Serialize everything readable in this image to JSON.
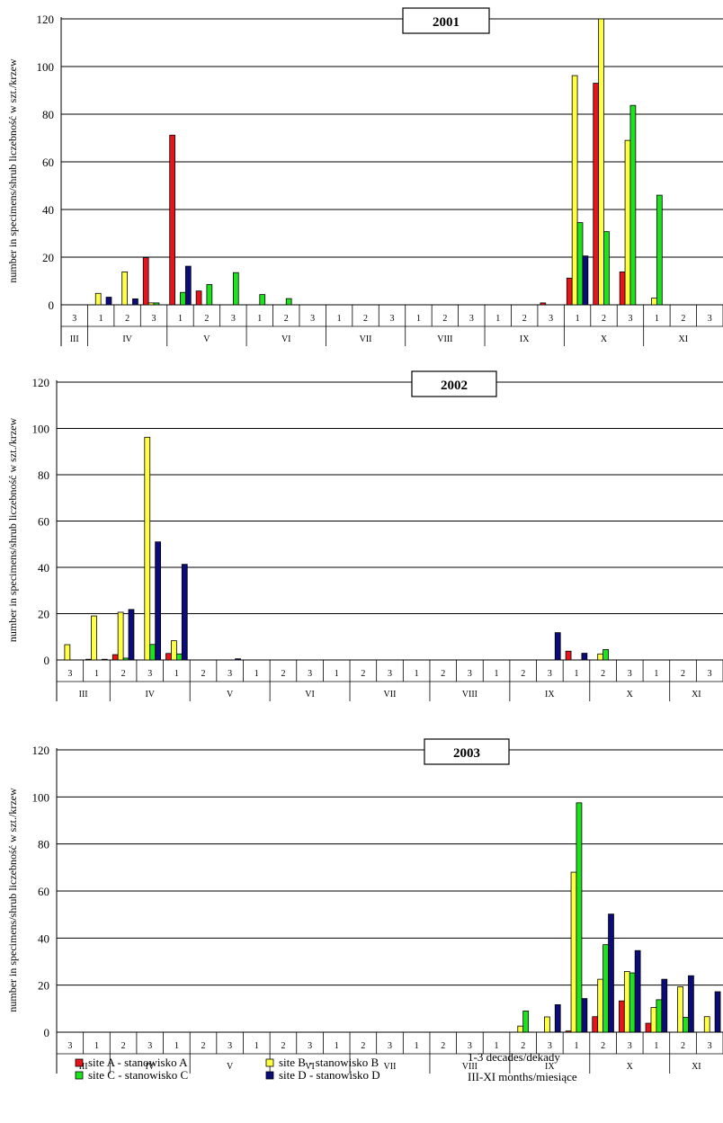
{
  "legend": {
    "items": [
      {
        "label": "site A - stanowisko A",
        "color": "#e8141a"
      },
      {
        "label": "site B - stanowisko B",
        "color": "#ffff44"
      },
      {
        "label": "site C - stanowisko C",
        "color": "#1fe21f"
      },
      {
        "label": "site D - stanowisko D",
        "color": "#0b0b7a"
      }
    ],
    "notes": [
      "1-3 decades/dekady",
      "III-XI months/miesiące"
    ]
  },
  "chart_data": [
    {
      "type": "bar",
      "title": "2001",
      "ylabel": "number in specimens/shrub liczebność w szt./krzew",
      "ylim": [
        0,
        120
      ],
      "yticks": [
        0,
        20,
        40,
        60,
        80,
        100,
        120
      ],
      "grid": true,
      "categories": [
        "3",
        "1",
        "2",
        "3",
        "1",
        "2",
        "3",
        "1",
        "2",
        "3",
        "1",
        "2",
        "3",
        "1",
        "2",
        "3",
        "1",
        "2",
        "3",
        "1",
        "2",
        "3",
        "1",
        "2",
        "3"
      ],
      "months": [
        {
          "label": "III",
          "span": 1
        },
        {
          "label": "IV",
          "span": 3
        },
        {
          "label": "V",
          "span": 3
        },
        {
          "label": "VI",
          "span": 3
        },
        {
          "label": "VII",
          "span": 3
        },
        {
          "label": "VIII",
          "span": 3
        },
        {
          "label": "IX",
          "span": 3
        },
        {
          "label": "X",
          "span": 3
        },
        {
          "label": "XI",
          "span": 3
        }
      ],
      "series": [
        {
          "name": "site A - stanowisko A",
          "values": [
            0,
            0,
            0,
            19.8,
            71.2,
            5.8,
            0,
            0,
            0,
            0,
            0,
            0,
            0,
            0,
            0,
            0,
            0,
            0,
            0.8,
            11.2,
            93,
            13.8,
            0,
            0,
            0
          ]
        },
        {
          "name": "site B - stanowisko B",
          "values": [
            0,
            4.8,
            13.8,
            0.8,
            0,
            0,
            0,
            0,
            0,
            0,
            0,
            0,
            0,
            0,
            0,
            0,
            0,
            0,
            0,
            96.2,
            122,
            69,
            2.8,
            0,
            0
          ]
        },
        {
          "name": "site C - stanowisko C",
          "values": [
            0,
            0,
            0,
            0.8,
            5.2,
            8.5,
            13.5,
            4.3,
            2.6,
            0,
            0,
            0,
            0,
            0,
            0,
            0,
            0,
            0,
            0,
            34.5,
            30.7,
            83.7,
            46,
            0,
            0
          ]
        },
        {
          "name": "site D - stanowisko D",
          "values": [
            0,
            3.2,
            2.5,
            0,
            16.2,
            0,
            0,
            0,
            0,
            0,
            0,
            0,
            0,
            0,
            0,
            0,
            0,
            0,
            0,
            20.5,
            0,
            0,
            0,
            0,
            0
          ]
        }
      ]
    },
    {
      "type": "bar",
      "title": "2002",
      "ylabel": "number in specimens/shrub liczebność w szt./krzew",
      "ylim": [
        0,
        120
      ],
      "yticks": [
        0,
        20,
        40,
        60,
        80,
        100,
        120
      ],
      "grid": true,
      "categories": [
        "3",
        "1",
        "2",
        "3",
        "1",
        "2",
        "3",
        "1",
        "2",
        "3",
        "1",
        "2",
        "3",
        "1",
        "2",
        "3",
        "1",
        "2",
        "3",
        "1",
        "2",
        "3",
        "1",
        "2",
        "3"
      ],
      "months": [
        {
          "label": "III",
          "span": 2
        },
        {
          "label": "IV",
          "span": 3
        },
        {
          "label": "V",
          "span": 3
        },
        {
          "label": "VI",
          "span": 3
        },
        {
          "label": "VII",
          "span": 3
        },
        {
          "label": "VIII",
          "span": 3
        },
        {
          "label": "IX",
          "span": 3
        },
        {
          "label": "X",
          "span": 3
        },
        {
          "label": "XI",
          "span": 2
        }
      ],
      "series": [
        {
          "name": "site A - stanowisko A",
          "values": [
            0,
            0.3,
            2.3,
            0,
            2.8,
            0,
            0,
            0,
            0,
            0,
            0,
            0,
            0,
            0,
            0,
            0,
            0,
            0,
            0,
            3.8,
            0,
            0,
            0,
            0,
            0
          ]
        },
        {
          "name": "site B - stanowisko B",
          "values": [
            6.6,
            19,
            20.6,
            96.2,
            8.3,
            0,
            0,
            0,
            0,
            0,
            0,
            0,
            0,
            0,
            0,
            0,
            0,
            0,
            0,
            0,
            2.6,
            0,
            0,
            0,
            0
          ]
        },
        {
          "name": "site C - stanowisko C",
          "values": [
            0,
            0,
            0.8,
            6.7,
            2.6,
            0,
            0,
            0,
            0,
            0,
            0,
            0,
            0,
            0,
            0,
            0,
            0,
            0,
            0,
            0,
            4.5,
            0,
            0,
            0,
            0
          ]
        },
        {
          "name": "site D - stanowisko D",
          "values": [
            0,
            0.3,
            21.8,
            51,
            41.3,
            0,
            0.5,
            0,
            0,
            0,
            0,
            0,
            0,
            0,
            0,
            0,
            0,
            0,
            11.8,
            2.9,
            0,
            0,
            0,
            0,
            0
          ]
        }
      ]
    },
    {
      "type": "bar",
      "title": "2003",
      "ylabel": "number in specimens/shrub liczebność w szt./krzew",
      "ylim": [
        0,
        120
      ],
      "yticks": [
        0,
        20,
        40,
        60,
        80,
        100,
        120
      ],
      "grid": true,
      "categories": [
        "3",
        "1",
        "2",
        "3",
        "1",
        "2",
        "3",
        "1",
        "2",
        "3",
        "1",
        "2",
        "3",
        "1",
        "2",
        "3",
        "1",
        "2",
        "3",
        "1",
        "2",
        "3",
        "1",
        "2",
        "3"
      ],
      "months": [
        {
          "label": "III",
          "span": 2
        },
        {
          "label": "IV",
          "span": 3
        },
        {
          "label": "V",
          "span": 3
        },
        {
          "label": "VI",
          "span": 3
        },
        {
          "label": "VII",
          "span": 3
        },
        {
          "label": "VIII",
          "span": 3
        },
        {
          "label": "IX",
          "span": 3
        },
        {
          "label": "X",
          "span": 3
        },
        {
          "label": "XI",
          "span": 2
        }
      ],
      "series": [
        {
          "name": "site A - stanowisko A",
          "values": [
            0,
            0,
            0,
            0,
            0,
            0,
            0,
            0,
            0,
            0,
            0,
            0,
            0,
            0,
            0,
            0,
            0,
            0,
            0,
            0.5,
            6.6,
            13.3,
            3.8,
            0,
            0
          ]
        },
        {
          "name": "site B - stanowisko B",
          "values": [
            0,
            0,
            0,
            0,
            0,
            0,
            0,
            0,
            0,
            0,
            0,
            0,
            0,
            0,
            0,
            0,
            0,
            2.6,
            6.5,
            68,
            22.5,
            25.8,
            10.5,
            19.3,
            6.6
          ]
        },
        {
          "name": "site C - stanowisko C",
          "values": [
            0,
            0,
            0,
            0,
            0,
            0,
            0,
            0,
            0,
            0,
            0,
            0,
            0,
            0,
            0,
            0,
            0,
            9,
            0,
            97.5,
            37.2,
            25.2,
            13.8,
            6.3,
            0
          ]
        },
        {
          "name": "site D - stanowisko D",
          "values": [
            0,
            0,
            0,
            0,
            0,
            0,
            0,
            0,
            0,
            0,
            0,
            0,
            0,
            0,
            0,
            0,
            0,
            0,
            11.7,
            14.3,
            50.2,
            34.7,
            22.5,
            24,
            17.2
          ]
        }
      ]
    }
  ]
}
